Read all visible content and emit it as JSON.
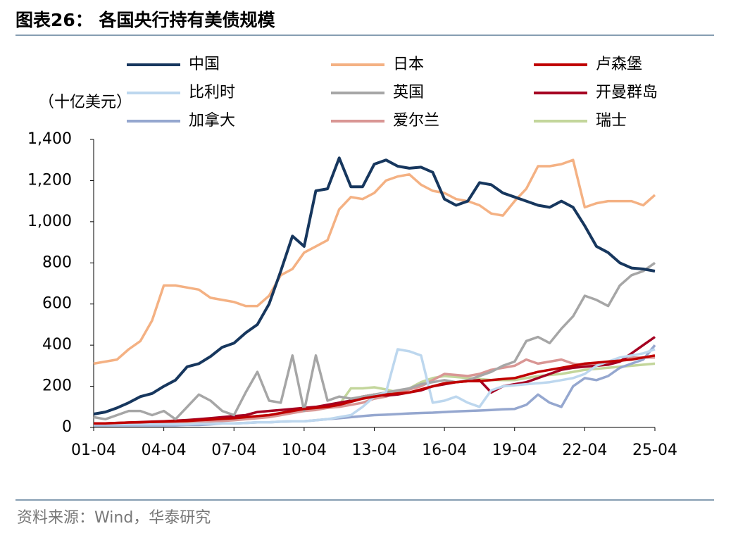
{
  "chart_data": {
    "type": "line",
    "title": "图表26：  各国央行持有美债规模",
    "y_axis_label": "（十亿美元）",
    "source": "资料来源：Wind，华泰研究",
    "x": [
      2001.25,
      2001.75,
      2002.25,
      2002.75,
      2003.25,
      2003.75,
      2004.25,
      2004.75,
      2005.25,
      2005.75,
      2006.25,
      2006.75,
      2007.25,
      2007.75,
      2008.25,
      2008.75,
      2009.25,
      2009.75,
      2010.25,
      2010.75,
      2011.25,
      2011.75,
      2012.25,
      2012.75,
      2013.25,
      2013.75,
      2014.25,
      2014.75,
      2015.25,
      2015.75,
      2016.25,
      2016.75,
      2017.25,
      2017.75,
      2018.25,
      2018.75,
      2019.25,
      2019.75,
      2020.25,
      2020.75,
      2021.25,
      2021.75,
      2022.25,
      2022.75,
      2023.25,
      2023.75,
      2024.25,
      2024.75,
      2025.25
    ],
    "xlim": [
      2001.25,
      2025.25
    ],
    "xticks": [
      {
        "value": 2001.25,
        "label": "01-04"
      },
      {
        "value": 2004.25,
        "label": "04-04"
      },
      {
        "value": 2007.25,
        "label": "07-04"
      },
      {
        "value": 2010.25,
        "label": "10-04"
      },
      {
        "value": 2013.25,
        "label": "13-04"
      },
      {
        "value": 2016.25,
        "label": "16-04"
      },
      {
        "value": 2019.25,
        "label": "19-04"
      },
      {
        "value": 2022.25,
        "label": "22-04"
      },
      {
        "value": 2025.25,
        "label": "25-04"
      }
    ],
    "ylim": [
      0,
      1400
    ],
    "yticks": [
      0,
      200,
      400,
      600,
      800,
      {
        "value": 1000,
        "label": "1,000"
      },
      {
        "value": 1200,
        "label": "1,200"
      },
      {
        "value": 1400,
        "label": "1,400"
      }
    ],
    "grid": false,
    "series": [
      {
        "name": "中国",
        "color": "#17375e",
        "values": [
          65,
          75,
          95,
          120,
          150,
          165,
          200,
          230,
          295,
          310,
          345,
          390,
          410,
          460,
          500,
          600,
          760,
          930,
          880,
          1150,
          1160,
          1310,
          1170,
          1170,
          1280,
          1300,
          1270,
          1260,
          1265,
          1240,
          1110,
          1080,
          1100,
          1190,
          1180,
          1140,
          1120,
          1100,
          1080,
          1070,
          1100,
          1070,
          980,
          880,
          850,
          800,
          775,
          770,
          760
        ]
      },
      {
        "name": "日本",
        "color": "#f4b183",
        "values": [
          310,
          320,
          330,
          380,
          420,
          520,
          690,
          690,
          680,
          670,
          630,
          620,
          610,
          590,
          590,
          640,
          740,
          770,
          850,
          880,
          910,
          1060,
          1120,
          1110,
          1140,
          1200,
          1220,
          1230,
          1180,
          1150,
          1140,
          1110,
          1100,
          1080,
          1040,
          1030,
          1100,
          1160,
          1270,
          1270,
          1280,
          1300,
          1070,
          1090,
          1100,
          1100,
          1100,
          1080,
          1130
        ]
      },
      {
        "name": "卢森堡",
        "color": "#c00000",
        "values": [
          20,
          20,
          22,
          24,
          25,
          27,
          28,
          30,
          32,
          35,
          38,
          42,
          45,
          50,
          55,
          60,
          70,
          80,
          90,
          95,
          100,
          110,
          125,
          140,
          150,
          160,
          165,
          170,
          185,
          200,
          215,
          220,
          225,
          225,
          230,
          235,
          240,
          255,
          270,
          280,
          290,
          300,
          310,
          315,
          320,
          325,
          330,
          340,
          350
        ]
      },
      {
        "name": "比利时",
        "color": "#bdd7ee",
        "values": [
          15,
          15,
          15,
          15,
          15,
          15,
          15,
          15,
          15,
          18,
          18,
          20,
          20,
          22,
          25,
          25,
          28,
          30,
          30,
          35,
          40,
          50,
          60,
          100,
          150,
          170,
          380,
          370,
          350,
          120,
          130,
          150,
          120,
          100,
          180,
          200,
          205,
          210,
          215,
          220,
          230,
          240,
          260,
          300,
          320,
          340,
          350,
          360,
          380
        ]
      },
      {
        "name": "英国",
        "color": "#a6a6a6",
        "values": [
          50,
          40,
          60,
          80,
          80,
          60,
          80,
          40,
          100,
          160,
          130,
          80,
          60,
          170,
          270,
          130,
          120,
          350,
          80,
          350,
          130,
          150,
          140,
          150,
          160,
          170,
          180,
          190,
          210,
          220,
          230,
          220,
          230,
          250,
          270,
          300,
          320,
          420,
          440,
          410,
          480,
          540,
          640,
          620,
          590,
          690,
          740,
          760,
          800
        ]
      },
      {
        "name": "开曼群岛",
        "color": "#a50021",
        "values": [
          20,
          20,
          22,
          24,
          26,
          28,
          30,
          33,
          36,
          40,
          45,
          50,
          55,
          60,
          75,
          80,
          85,
          90,
          95,
          100,
          110,
          120,
          130,
          150,
          160,
          155,
          160,
          170,
          180,
          200,
          210,
          220,
          225,
          230,
          170,
          200,
          210,
          220,
          240,
          260,
          280,
          290,
          295,
          300,
          305,
          320,
          360,
          400,
          440
        ]
      },
      {
        "name": "加拿大",
        "color": "#95a7cf",
        "values": [
          10,
          10,
          10,
          10,
          10,
          10,
          10,
          10,
          12,
          12,
          15,
          20,
          20,
          22,
          25,
          25,
          28,
          30,
          30,
          35,
          40,
          45,
          50,
          55,
          60,
          62,
          65,
          68,
          70,
          72,
          75,
          78,
          80,
          82,
          85,
          88,
          90,
          110,
          160,
          120,
          100,
          200,
          240,
          230,
          250,
          290,
          310,
          330,
          400
        ]
      },
      {
        "name": "爱尔兰",
        "color": "#d99694",
        "values": [
          20,
          20,
          20,
          20,
          22,
          22,
          25,
          25,
          28,
          30,
          30,
          32,
          35,
          40,
          45,
          50,
          60,
          70,
          80,
          85,
          95,
          100,
          110,
          120,
          140,
          150,
          170,
          185,
          200,
          230,
          260,
          255,
          250,
          260,
          280,
          290,
          300,
          330,
          310,
          320,
          330,
          310,
          300,
          305,
          310,
          320,
          340,
          340,
          340
        ]
      },
      {
        "name": "瑞士",
        "color": "#c3d69b",
        "values": [
          10,
          10,
          12,
          12,
          15,
          15,
          18,
          20,
          25,
          30,
          30,
          35,
          40,
          45,
          55,
          60,
          70,
          80,
          90,
          100,
          105,
          110,
          190,
          190,
          195,
          185,
          170,
          190,
          220,
          240,
          250,
          245,
          240,
          235,
          230,
          230,
          230,
          240,
          250,
          255,
          260,
          270,
          280,
          285,
          290,
          295,
          300,
          305,
          310
        ]
      }
    ]
  }
}
